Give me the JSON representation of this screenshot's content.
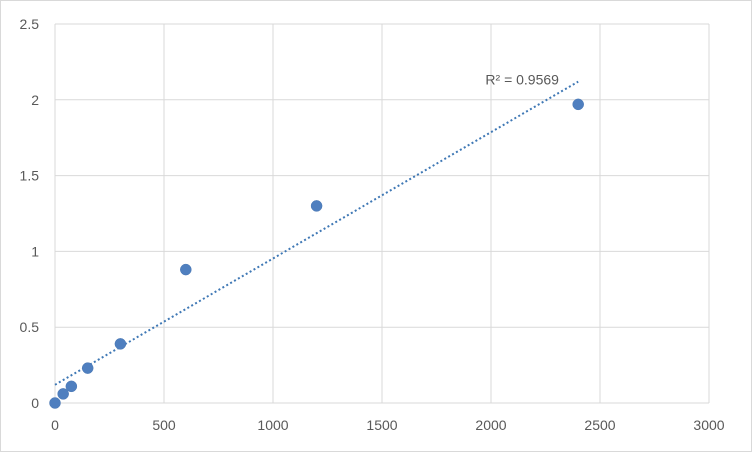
{
  "chart_data": {
    "type": "scatter",
    "title": "",
    "xlabel": "",
    "ylabel": "",
    "xlim": [
      0,
      3000
    ],
    "ylim": [
      0,
      2.5
    ],
    "xticks": [
      0,
      500,
      1000,
      1500,
      2000,
      2500,
      3000
    ],
    "yticks": [
      0,
      0.5,
      1,
      1.5,
      2,
      2.5
    ],
    "xtick_labels": [
      "0",
      "500",
      "1000",
      "1500",
      "2000",
      "2500",
      "3000"
    ],
    "ytick_labels": [
      "0",
      "0.5",
      "1",
      "1.5",
      "2",
      "2.5"
    ],
    "grid": true,
    "legend": "none",
    "series": [
      {
        "x": [
          0,
          37.5,
          75,
          150,
          300,
          600,
          1200,
          2400
        ],
        "y": [
          0.0,
          0.06,
          0.11,
          0.23,
          0.39,
          0.88,
          1.3,
          1.97
        ],
        "color": "#4f7fbf"
      }
    ],
    "trendline": {
      "type": "linear",
      "color": "#3f78b5",
      "style": "dotted",
      "x_range": [
        0,
        2400
      ],
      "y_start": 0.12,
      "y_end": 2.12
    },
    "annotations": [
      {
        "text": "R² = 0.9569"
      }
    ]
  }
}
